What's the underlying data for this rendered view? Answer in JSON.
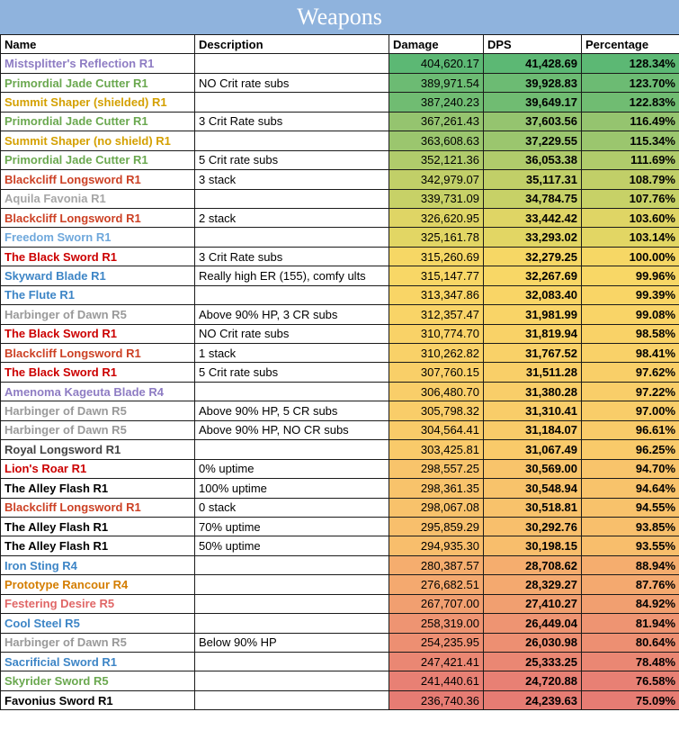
{
  "title": "Weapons",
  "headers": [
    "Name",
    "Description",
    "Damage",
    "DPS",
    "Percentage"
  ],
  "rows": [
    {
      "name": "Mistsplitter's Reflection R1",
      "name_color": "#8e7cc3",
      "desc": "",
      "damage": "404,620.17",
      "dps": "41,428.69",
      "pct": "128.34%",
      "bg": "#5cb874"
    },
    {
      "name": "Primordial Jade Cutter R1",
      "name_color": "#6aa84f",
      "desc": "NO Crit rate subs",
      "damage": "389,971.54",
      "dps": "39,928.83",
      "pct": "123.70%",
      "bg": "#6cbb73"
    },
    {
      "name": "Summit Shaper (shielded) R1",
      "name_color": "#d4a000",
      "desc": "",
      "damage": "387,240.23",
      "dps": "39,649.17",
      "pct": "122.83%",
      "bg": "#70bc72"
    },
    {
      "name": "Primordial Jade Cutter R1",
      "name_color": "#6aa84f",
      "desc": "3 Crit Rate subs",
      "damage": "367,261.43",
      "dps": "37,603.56",
      "pct": "116.49%",
      "bg": "#95c46f"
    },
    {
      "name": "Summit Shaper (no shield) R1",
      "name_color": "#d4a000",
      "desc": "",
      "damage": "363,608.63",
      "dps": "37,229.55",
      "pct": "115.34%",
      "bg": "#9bc66e"
    },
    {
      "name": "Primordial Jade Cutter R1",
      "name_color": "#6aa84f",
      "desc": "5 Crit rate subs",
      "damage": "352,121.36",
      "dps": "36,053.38",
      "pct": "111.69%",
      "bg": "#b0cb6b"
    },
    {
      "name": "Blackcliff Longsword R1",
      "name_color": "#cc4125",
      "desc": "3 stack",
      "damage": "342,979.07",
      "dps": "35,117.31",
      "pct": "108.79%",
      "bg": "#c1cf68"
    },
    {
      "name": "Aquila Favonia R1",
      "name_color": "#a6a6a6",
      "desc": "",
      "damage": "339,731.09",
      "dps": "34,784.75",
      "pct": "107.76%",
      "bg": "#c7d167"
    },
    {
      "name": "Blackcliff Longsword R1",
      "name_color": "#cc4125",
      "desc": "2 stack",
      "damage": "326,620.95",
      "dps": "33,442.42",
      "pct": "103.60%",
      "bg": "#dfd565"
    },
    {
      "name": "Freedom Sworn R1",
      "name_color": "#6fa8dc",
      "desc": "",
      "damage": "325,161.78",
      "dps": "33,293.02",
      "pct": "103.14%",
      "bg": "#e2d664"
    },
    {
      "name": "The Black Sword R1",
      "name_color": "#cc0000",
      "desc": "3 Crit Rate subs",
      "damage": "315,260.69",
      "dps": "32,279.25",
      "pct": "100.00%",
      "bg": "#f6d765"
    },
    {
      "name": "Skyward Blade R1",
      "name_color": "#3d85c6",
      "desc": "Really high ER (155), comfy ults",
      "damage": "315,147.77",
      "dps": "32,267.69",
      "pct": "99.96%",
      "bg": "#f8d766"
    },
    {
      "name": "The Flute R1",
      "name_color": "#3d85c6",
      "desc": "",
      "damage": "313,347.86",
      "dps": "32,083.40",
      "pct": "99.39%",
      "bg": "#f9d566"
    },
    {
      "name": "Harbinger of Dawn R5",
      "name_color": "#999999",
      "desc": "Above 90% HP, 3 CR subs",
      "damage": "312,357.47",
      "dps": "31,981.99",
      "pct": "99.08%",
      "bg": "#f9d467"
    },
    {
      "name": "The Black Sword R1",
      "name_color": "#cc0000",
      "desc": "NO Crit rate subs",
      "damage": "310,774.70",
      "dps": "31,819.94",
      "pct": "98.58%",
      "bg": "#f9d267"
    },
    {
      "name": "Blackcliff Longsword R1",
      "name_color": "#cc4125",
      "desc": "1 stack",
      "damage": "310,262.82",
      "dps": "31,767.52",
      "pct": "98.41%",
      "bg": "#f9d168"
    },
    {
      "name": "The Black Sword R1",
      "name_color": "#cc0000",
      "desc": "5 Crit rate subs",
      "damage": "307,760.15",
      "dps": "31,511.28",
      "pct": "97.62%",
      "bg": "#f9cf68"
    },
    {
      "name": "Amenoma Kageuta Blade R4",
      "name_color": "#8e7cc3",
      "desc": "",
      "damage": "306,480.70",
      "dps": "31,380.28",
      "pct": "97.22%",
      "bg": "#f9ce69"
    },
    {
      "name": "Harbinger of Dawn R5",
      "name_color": "#999999",
      "desc": "Above 90% HP, 5 CR subs",
      "damage": "305,798.32",
      "dps": "31,310.41",
      "pct": "97.00%",
      "bg": "#f9cd69"
    },
    {
      "name": "Harbinger of Dawn R5",
      "name_color": "#999999",
      "desc": "Above 90% HP, NO CR subs",
      "damage": "304,564.41",
      "dps": "31,184.07",
      "pct": "96.61%",
      "bg": "#f9cb69"
    },
    {
      "name": "Royal Longsword R1",
      "name_color": "#434343",
      "desc": "",
      "damage": "303,425.81",
      "dps": "31,067.49",
      "pct": "96.25%",
      "bg": "#f9ca6a"
    },
    {
      "name": "Lion's Roar R1",
      "name_color": "#cc0000",
      "desc": "0% uptime",
      "damage": "298,557.25",
      "dps": "30,569.00",
      "pct": "94.70%",
      "bg": "#f8c46b"
    },
    {
      "name": "The Alley Flash R1",
      "name_color": "#000000",
      "desc": "100% uptime",
      "damage": "298,361.35",
      "dps": "30,548.94",
      "pct": "94.64%",
      "bg": "#f8c36b"
    },
    {
      "name": "Blackcliff Longsword R1",
      "name_color": "#cc4125",
      "desc": "0 stack",
      "damage": "298,067.08",
      "dps": "30,518.81",
      "pct": "94.55%",
      "bg": "#f8c26b"
    },
    {
      "name": "The Alley Flash R1",
      "name_color": "#000000",
      "desc": "70% uptime",
      "damage": "295,859.29",
      "dps": "30,292.76",
      "pct": "93.85%",
      "bg": "#f8bf6c"
    },
    {
      "name": "The Alley Flash R1",
      "name_color": "#000000",
      "desc": "50% uptime",
      "damage": "294,935.30",
      "dps": "30,198.15",
      "pct": "93.55%",
      "bg": "#f8be6c"
    },
    {
      "name": "Iron Sting R4",
      "name_color": "#3d85c6",
      "desc": "",
      "damage": "280,387.57",
      "dps": "28,708.62",
      "pct": "88.94%",
      "bg": "#f5ad6e"
    },
    {
      "name": "Prototype Rancour R4",
      "name_color": "#d47d00",
      "desc": "",
      "damage": "276,682.51",
      "dps": "28,329.27",
      "pct": "87.76%",
      "bg": "#f4a96f"
    },
    {
      "name": "Festering Desire R5",
      "name_color": "#e06666",
      "desc": "",
      "damage": "267,707.00",
      "dps": "27,410.27",
      "pct": "84.92%",
      "bg": "#f19f70"
    },
    {
      "name": "Cool Steel R5",
      "name_color": "#3d85c6",
      "desc": "",
      "damage": "258,319.00",
      "dps": "26,449.04",
      "pct": "81.94%",
      "bg": "#ee9472"
    },
    {
      "name": "Harbinger of Dawn R5",
      "name_color": "#999999",
      "desc": "Below 90% HP",
      "damage": "254,235.95",
      "dps": "26,030.98",
      "pct": "80.64%",
      "bg": "#ed8f72"
    },
    {
      "name": "Sacrificial Sword R1",
      "name_color": "#3d85c6",
      "desc": "",
      "damage": "247,421.41",
      "dps": "25,333.25",
      "pct": "78.48%",
      "bg": "#ea8773"
    },
    {
      "name": "Skyrider Sword R5",
      "name_color": "#6aa84f",
      "desc": "",
      "damage": "241,440.61",
      "dps": "24,720.88",
      "pct": "76.58%",
      "bg": "#e88074"
    },
    {
      "name": "Favonius Sword R1",
      "name_color": "#000000",
      "desc": "",
      "damage": "236,740.36",
      "dps": "24,239.63",
      "pct": "75.09%",
      "bg": "#e67c73"
    }
  ]
}
